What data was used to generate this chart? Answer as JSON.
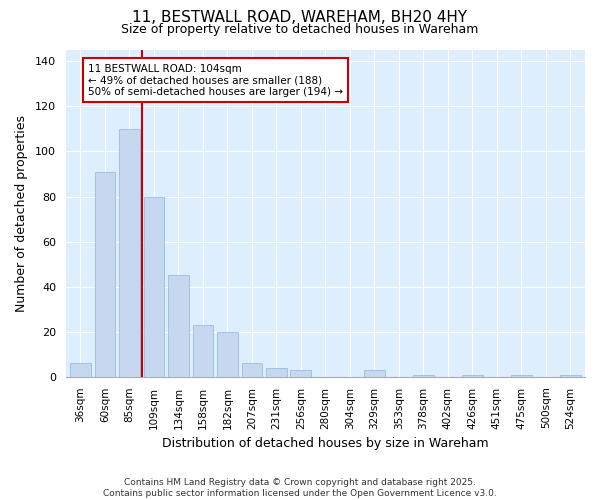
{
  "title_line1": "11, BESTWALL ROAD, WAREHAM, BH20 4HY",
  "title_line2": "Size of property relative to detached houses in Wareham",
  "xlabel": "Distribution of detached houses by size in Wareham",
  "ylabel": "Number of detached properties",
  "categories": [
    "36sqm",
    "60sqm",
    "85sqm",
    "109sqm",
    "134sqm",
    "158sqm",
    "182sqm",
    "207sqm",
    "231sqm",
    "256sqm",
    "280sqm",
    "304sqm",
    "329sqm",
    "353sqm",
    "378sqm",
    "402sqm",
    "426sqm",
    "451sqm",
    "475sqm",
    "500sqm",
    "524sqm"
  ],
  "values": [
    6,
    91,
    110,
    80,
    45,
    23,
    20,
    6,
    4,
    3,
    0,
    0,
    3,
    0,
    1,
    0,
    1,
    0,
    1,
    0,
    1
  ],
  "bar_color": "#c5d8f0",
  "bar_edge_color": "#9bbde0",
  "vline_x_idx": 3,
  "vline_color": "#cc0000",
  "annotation_text": "11 BESTWALL ROAD: 104sqm\n← 49% of detached houses are smaller (188)\n50% of semi-detached houses are larger (194) →",
  "annotation_box_color": "#cc0000",
  "ylim": [
    0,
    145
  ],
  "yticks": [
    0,
    20,
    40,
    60,
    80,
    100,
    120,
    140
  ],
  "plot_bg_color": "#ddeeff",
  "fig_bg_color": "#ffffff",
  "footer_line1": "Contains HM Land Registry data © Crown copyright and database right 2025.",
  "footer_line2": "Contains public sector information licensed under the Open Government Licence v3.0."
}
